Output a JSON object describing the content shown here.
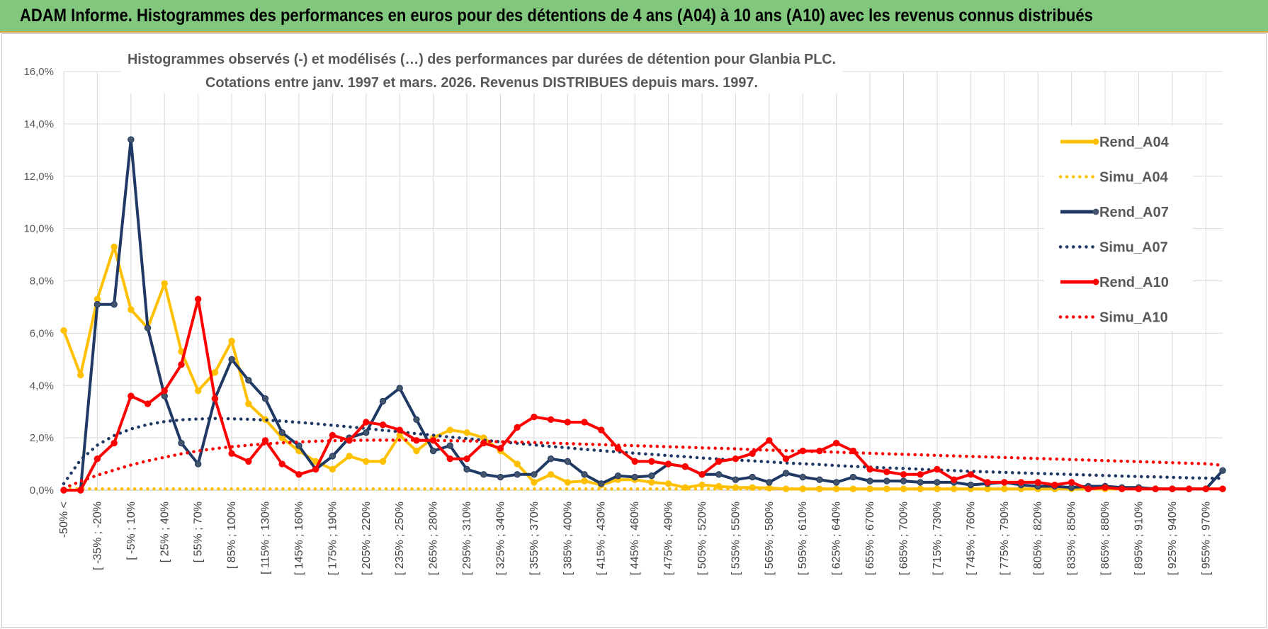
{
  "header": {
    "title": "ADAM Informe. Histogrammes des performances en euros pour des détentions de 4 ans (A04) à 10 ans (A10) avec les revenus connus distribués"
  },
  "chart_data": {
    "type": "line",
    "title_line1": "Histogrammes observés (-) et modélisés (…) des performances par durées de détention pour Glanbia PLC.",
    "title_line2": "Cotations entre janv. 1997 et mars. 2026. Revenus DISTRIBUES depuis mars. 1997.",
    "ylim": [
      0,
      16
    ],
    "yticks": [
      0,
      2,
      4,
      6,
      8,
      10,
      12,
      14,
      16
    ],
    "ytick_labels": [
      "0,0%",
      "2,0%",
      "4,0%",
      "6,0%",
      "8,0%",
      "10,0%",
      "12,0%",
      "14,0%",
      "16,0%"
    ],
    "x_labels": [
      "-50% <",
      "[ -35% ; -20%",
      "[ -5% ; 10%",
      "[ 25% ; 40%",
      "[ 55% ; 70%",
      "[ 85% ; 100%",
      "[ 115% ; 130%",
      "[ 145% ; 160%",
      "[ 175% ; 190%",
      "[ 205% ; 220%",
      "[ 235% ; 250%",
      "[ 265% ; 280%",
      "[ 295% ; 310%",
      "[ 325% ; 340%",
      "[ 355% ; 370%",
      "[ 385% ; 400%",
      "[ 415% ; 430%",
      "[ 445% ; 460%",
      "[ 475% ; 490%",
      "[ 505% ; 520%",
      "[ 535% ; 550%",
      "[ 565% ; 580%",
      "[ 595% ; 610%",
      "[ 625% ; 640%",
      "[ 655% ; 670%",
      "[ 685% ; 700%",
      "[ 715% ; 730%",
      "[ 745% ; 760%",
      "[ 775% ; 790%",
      "[ 805% ; 820%",
      "[ 835% ; 850%",
      "[ 865% ; 880%",
      "[ 895% ; 910%",
      "[ 925% ; 940%",
      "[ 955% ; 970%"
    ],
    "x_label_indices": [
      0,
      2,
      4,
      6,
      8,
      10,
      12,
      14,
      16,
      18,
      20,
      22,
      24,
      26,
      28,
      30,
      32,
      34,
      36,
      38,
      40,
      42,
      44,
      46,
      48,
      50,
      52,
      54,
      56,
      58,
      60,
      62,
      64,
      66,
      68
    ],
    "n_points": 70,
    "series": [
      {
        "name": "Rend_A04",
        "style": "solid",
        "color": "#ffc000",
        "values": [
          6.1,
          4.4,
          7.3,
          9.3,
          6.9,
          6.2,
          7.9,
          5.3,
          3.8,
          4.5,
          5.7,
          3.3,
          2.7,
          2.0,
          1.5,
          1.1,
          0.8,
          1.3,
          1.1,
          1.1,
          2.1,
          1.5,
          2.0,
          2.3,
          2.2,
          2.0,
          1.5,
          1.0,
          0.3,
          0.6,
          0.3,
          0.35,
          0.2,
          0.4,
          0.4,
          0.3,
          0.25,
          0.1,
          0.2,
          0.15,
          0.1,
          0.1,
          0.08,
          0.05,
          0.05,
          0.05,
          0.05,
          0.05,
          0.05,
          0.05,
          0.05,
          0.05,
          0.05,
          0.05,
          0.05,
          0.05,
          0.05,
          0.05,
          0.05,
          0.05,
          0.05,
          0.05,
          0.05,
          0.05,
          0.05,
          0.05,
          0.05,
          0.05,
          0.05,
          0.05
        ]
      },
      {
        "name": "Simu_A04",
        "style": "dotted",
        "color": "#ffc000",
        "values": [
          0.05,
          0.05,
          0.05,
          0.05,
          0.05,
          0.05,
          0.05,
          0.05,
          0.05,
          0.05,
          0.05,
          0.05,
          0.05,
          0.05,
          0.05,
          0.05,
          0.05,
          0.05,
          0.05,
          0.05,
          0.05,
          0.05,
          0.05,
          0.05,
          0.05,
          0.05,
          0.05,
          0.05,
          0.05,
          0.05,
          0.05,
          0.05,
          0.05,
          0.05,
          0.05,
          0.05,
          0.05,
          0.05,
          0.05,
          0.05,
          0.05,
          0.05,
          0.05,
          0.05,
          0.05,
          0.05,
          0.05,
          0.05,
          0.05,
          0.05,
          0.05,
          0.05,
          0.05,
          0.05,
          0.05,
          0.05,
          0.05,
          0.05,
          0.05,
          0.05,
          0.05,
          0.05,
          0.05,
          0.05,
          0.05,
          0.05,
          0.05,
          0.05,
          0.05,
          0.05
        ]
      },
      {
        "name": "Rend_A07",
        "style": "solid",
        "color": "#1f3864",
        "values": [
          0.0,
          0.0,
          7.1,
          7.1,
          13.4,
          6.2,
          3.6,
          1.8,
          1.0,
          3.5,
          5.0,
          4.2,
          3.5,
          2.2,
          1.7,
          0.8,
          1.3,
          2.0,
          2.2,
          3.4,
          3.9,
          2.7,
          1.5,
          1.7,
          0.8,
          0.6,
          0.5,
          0.6,
          0.6,
          1.2,
          1.1,
          0.6,
          0.25,
          0.55,
          0.5,
          0.55,
          1.0,
          0.9,
          0.6,
          0.6,
          0.4,
          0.5,
          0.3,
          0.65,
          0.5,
          0.4,
          0.3,
          0.5,
          0.35,
          0.35,
          0.35,
          0.3,
          0.3,
          0.3,
          0.2,
          0.25,
          0.3,
          0.2,
          0.15,
          0.15,
          0.1,
          0.15,
          0.15,
          0.1,
          0.1,
          0.05,
          0.05,
          0.05,
          0.05,
          0.75
        ]
      },
      {
        "name": "Simu_A07",
        "style": "dotted",
        "color": "#1f3864",
        "values": [
          0.25,
          1.16,
          1.72,
          2.09,
          2.34,
          2.51,
          2.62,
          2.69,
          2.72,
          2.74,
          2.73,
          2.71,
          2.68,
          2.64,
          2.59,
          2.54,
          2.48,
          2.42,
          2.36,
          2.29,
          2.23,
          2.16,
          2.1,
          2.03,
          1.97,
          1.91,
          1.85,
          1.79,
          1.73,
          1.67,
          1.62,
          1.56,
          1.51,
          1.46,
          1.41,
          1.37,
          1.32,
          1.28,
          1.23,
          1.19,
          1.15,
          1.12,
          1.08,
          1.04,
          1.01,
          0.98,
          0.94,
          0.91,
          0.88,
          0.85,
          0.83,
          0.8,
          0.77,
          0.75,
          0.72,
          0.7,
          0.68,
          0.66,
          0.64,
          0.62,
          0.6,
          0.58,
          0.56,
          0.54,
          0.52,
          0.51,
          0.49,
          0.47,
          0.46,
          0.45
        ]
      },
      {
        "name": "Rend_A10",
        "style": "solid",
        "color": "#ff0000",
        "values": [
          0.0,
          0.0,
          1.2,
          1.8,
          3.6,
          3.3,
          3.8,
          4.8,
          7.3,
          3.5,
          1.4,
          1.1,
          1.9,
          1.0,
          0.6,
          0.8,
          2.1,
          1.9,
          2.6,
          2.5,
          2.3,
          1.9,
          1.9,
          1.2,
          1.2,
          1.8,
          1.6,
          2.4,
          2.8,
          2.7,
          2.6,
          2.6,
          2.3,
          1.6,
          1.1,
          1.1,
          1.0,
          0.9,
          0.6,
          1.1,
          1.2,
          1.4,
          1.9,
          1.2,
          1.5,
          1.5,
          1.8,
          1.5,
          0.8,
          0.7,
          0.6,
          0.6,
          0.8,
          0.4,
          0.6,
          0.3,
          0.3,
          0.3,
          0.3,
          0.2,
          0.3,
          0.05,
          0.1,
          0.05,
          0.05,
          0.05,
          0.05,
          0.05,
          0.05,
          0.05
        ]
      },
      {
        "name": "Simu_A10",
        "style": "dotted",
        "color": "#ff0000",
        "values": [
          0.07,
          0.34,
          0.57,
          0.77,
          0.96,
          1.12,
          1.26,
          1.39,
          1.5,
          1.59,
          1.66,
          1.72,
          1.77,
          1.81,
          1.84,
          1.87,
          1.89,
          1.9,
          1.91,
          1.91,
          1.91,
          1.91,
          1.9,
          1.89,
          1.88,
          1.87,
          1.85,
          1.84,
          1.82,
          1.8,
          1.78,
          1.76,
          1.74,
          1.72,
          1.7,
          1.68,
          1.66,
          1.64,
          1.62,
          1.6,
          1.58,
          1.55,
          1.53,
          1.51,
          1.49,
          1.47,
          1.45,
          1.43,
          1.41,
          1.39,
          1.37,
          1.35,
          1.33,
          1.31,
          1.29,
          1.27,
          1.25,
          1.23,
          1.21,
          1.19,
          1.17,
          1.15,
          1.13,
          1.11,
          1.09,
          1.07,
          1.05,
          1.03,
          1.01,
          0.95
        ]
      }
    ],
    "legend_position": "right"
  }
}
